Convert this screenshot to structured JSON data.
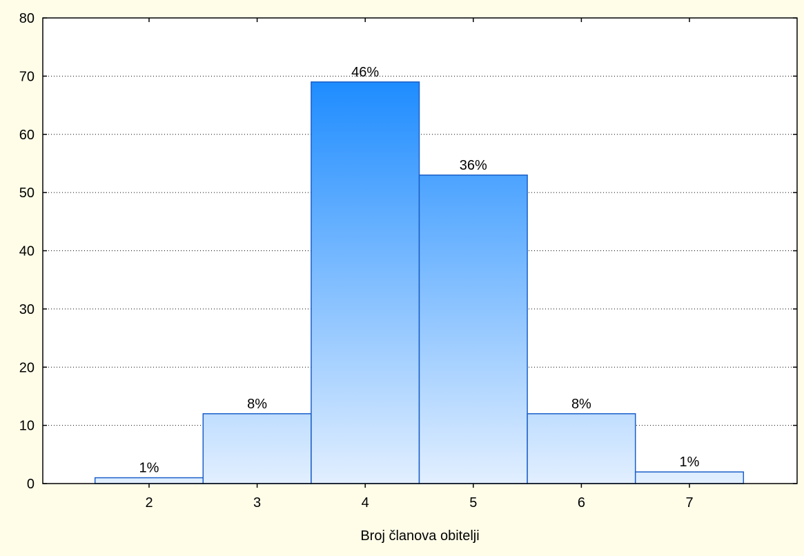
{
  "colors": {
    "background": "#fffde8",
    "plot_background": "#ffffff",
    "bar_stroke": "#1a5fc8",
    "bar_gradient_top": "#1e8cff",
    "bar_gradient_bottom": "#e2efff",
    "axis": "#000000",
    "grid": "#000000"
  },
  "chart_data": {
    "type": "bar",
    "title": "",
    "xlabel": "Broj članova obitelji",
    "ylabel": "",
    "categories": [
      "2",
      "3",
      "4",
      "5",
      "6",
      "7"
    ],
    "values": [
      1,
      12,
      69,
      53,
      12,
      2
    ],
    "data_labels": [
      "1%",
      "8%",
      "46%",
      "36%",
      "8%",
      "1%"
    ],
    "ylim": [
      0,
      80
    ],
    "yticks": [
      0,
      10,
      20,
      30,
      40,
      50,
      60,
      70,
      80
    ],
    "grid": "horizontal dotted",
    "legend": "none"
  }
}
